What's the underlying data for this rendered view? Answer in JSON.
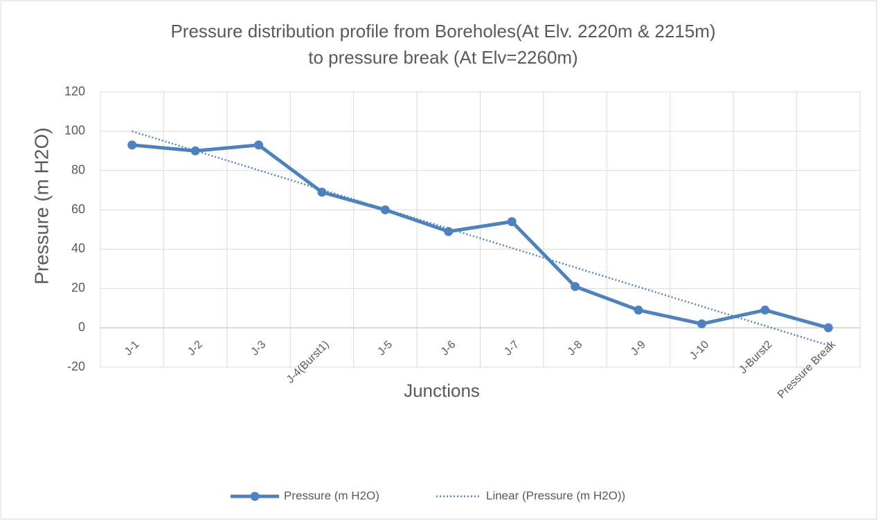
{
  "chart_data": {
    "type": "line",
    "title": [
      "Pressure distribution profile from Boreholes(At Elv. 2220m & 2215m)",
      "to pressure break (At Elv=2260m)"
    ],
    "x_label": "Junctions",
    "y_label": "Pressure (m H2O)",
    "categories": [
      "J-1",
      "J-2",
      "J-3",
      "J-4(Burst1)",
      "J-5",
      "J-6",
      "J-7",
      "J-8",
      "J-9",
      "J-10",
      "J-Burst2",
      "Pressure Break"
    ],
    "series": [
      {
        "name": "Pressure (m H2O)",
        "color": "#4f81bd",
        "style": "solid",
        "markers": true,
        "values": [
          93,
          90,
          93,
          69,
          60,
          49,
          54,
          21,
          9,
          2,
          9,
          0
        ]
      },
      {
        "name": "Linear (Pressure (m H2O))",
        "color": "#4f81bd",
        "style": "dotted",
        "markers": false,
        "values": [
          100,
          90.1,
          80.2,
          70.3,
          60.4,
          50.5,
          40.6,
          30.7,
          20.8,
          10.9,
          1.0,
          -8.9
        ]
      }
    ],
    "ylim": [
      -20,
      120
    ],
    "yticks": [
      -20,
      0,
      20,
      40,
      60,
      80,
      100,
      120
    ],
    "grid": true,
    "legend": "bottom"
  }
}
